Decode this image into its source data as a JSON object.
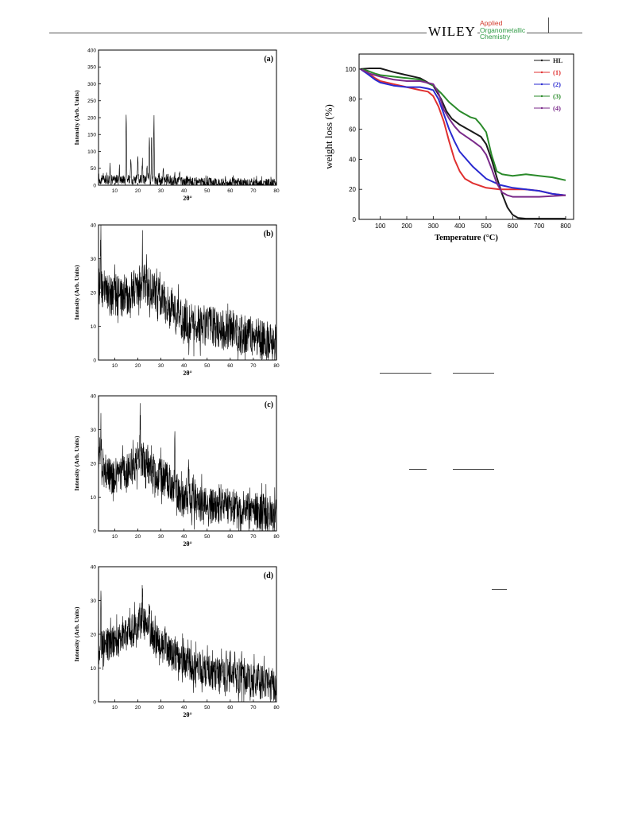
{
  "header": {
    "publisher": "WILEY",
    "journal_lines": [
      "Applied",
      "Organometallic",
      "Chemistry"
    ]
  },
  "chart_data": [
    {
      "type": "line",
      "panel_label": "(a)",
      "xlabel": "2θ°",
      "ylabel": "Intensity (Arb. Units)",
      "xlim": [
        3,
        80
      ],
      "ylim": [
        0,
        400
      ],
      "xticks": [
        10,
        20,
        30,
        40,
        50,
        60,
        70,
        80
      ],
      "yticks": [
        0,
        50,
        100,
        150,
        200,
        250,
        300,
        350,
        400
      ],
      "series": [
        {
          "color": "#000000",
          "baseline": [
            [
              3,
              16
            ],
            [
              20,
              18
            ],
            [
              30,
              14
            ],
            [
              40,
              10
            ],
            [
              50,
              8
            ],
            [
              60,
              7
            ],
            [
              80,
              5
            ]
          ],
          "noise": 14,
          "peaks": [
            [
              5,
              28
            ],
            [
              8,
              55
            ],
            [
              12,
              50
            ],
            [
              15,
              220
            ],
            [
              17,
              80
            ],
            [
              20,
              75
            ],
            [
              22,
              68
            ],
            [
              24,
              60
            ],
            [
              25,
              160
            ],
            [
              26,
              150
            ],
            [
              27,
              205
            ],
            [
              29,
              38
            ],
            [
              31,
              45
            ],
            [
              33,
              35
            ],
            [
              36,
              28
            ],
            [
              38,
              50
            ]
          ]
        }
      ]
    },
    {
      "type": "line",
      "panel_label": "(b)",
      "xlabel": "2θ°",
      "ylabel": "Intensity (Arb. Units)",
      "xlim": [
        3,
        80
      ],
      "ylim": [
        0,
        40
      ],
      "xticks": [
        10,
        20,
        30,
        40,
        50,
        60,
        70,
        80
      ],
      "yticks": [
        0,
        10,
        20,
        30,
        40
      ],
      "series": [
        {
          "color": "#000000",
          "baseline": [
            [
              3,
              22
            ],
            [
              8,
              19
            ],
            [
              15,
              19
            ],
            [
              22,
              23
            ],
            [
              28,
              20
            ],
            [
              35,
              15
            ],
            [
              40,
              11
            ],
            [
              50,
              10
            ],
            [
              60,
              9
            ],
            [
              70,
              7
            ],
            [
              80,
              5
            ]
          ],
          "noise": 6,
          "peaks": [
            [
              4,
              38
            ],
            [
              22,
              34
            ],
            [
              35,
              19
            ]
          ]
        }
      ]
    },
    {
      "type": "line",
      "panel_label": "(c)",
      "xlabel": "2θ°",
      "ylabel": "Intensity (Arb. Units)",
      "xlim": [
        3,
        80
      ],
      "ylim": [
        0,
        40
      ],
      "xticks": [
        10,
        20,
        30,
        40,
        50,
        60,
        70,
        80
      ],
      "yticks": [
        0,
        10,
        20,
        30,
        40
      ],
      "series": [
        {
          "color": "#000000",
          "baseline": [
            [
              3,
              20
            ],
            [
              8,
              16
            ],
            [
              15,
              17
            ],
            [
              21,
              22
            ],
            [
              26,
              18
            ],
            [
              33,
              15
            ],
            [
              40,
              9
            ],
            [
              50,
              8
            ],
            [
              60,
              7
            ],
            [
              70,
              6
            ],
            [
              80,
              5
            ]
          ],
          "noise": 5.5,
          "peaks": [
            [
              4,
              33
            ],
            [
              21,
              36
            ],
            [
              36,
              27
            ],
            [
              42,
              22
            ]
          ]
        }
      ]
    },
    {
      "type": "line",
      "panel_label": "(d)",
      "xlabel": "2θ°",
      "ylabel": "Intensity (Arb. Units)",
      "xlim": [
        3,
        80
      ],
      "ylim": [
        0,
        40
      ],
      "xticks": [
        10,
        20,
        30,
        40,
        50,
        60,
        70,
        80
      ],
      "yticks": [
        0,
        10,
        20,
        30,
        40
      ],
      "series": [
        {
          "color": "#000000",
          "baseline": [
            [
              3,
              16
            ],
            [
              10,
              18
            ],
            [
              16,
              20
            ],
            [
              22,
              24
            ],
            [
              28,
              18
            ],
            [
              35,
              14
            ],
            [
              45,
              10
            ],
            [
              55,
              8
            ],
            [
              65,
              7
            ],
            [
              80,
              5
            ]
          ],
          "noise": 5,
          "peaks": [
            [
              4,
              32
            ],
            [
              22,
              36
            ],
            [
              25,
              31
            ]
          ]
        }
      ]
    },
    {
      "type": "line",
      "xlabel": "Temperature (°C)",
      "ylabel": "weight loss (%)",
      "xlim": [
        20,
        830
      ],
      "ylim": [
        0,
        110
      ],
      "xticks": [
        100,
        200,
        300,
        400,
        500,
        600,
        700,
        800
      ],
      "yticks": [
        0,
        20,
        40,
        60,
        80,
        100
      ],
      "legend": "top-right",
      "series": [
        {
          "name": "HL",
          "color": "#1a1a1a",
          "x": [
            25,
            60,
            100,
            150,
            200,
            250,
            300,
            330,
            350,
            370,
            400,
            450,
            480,
            500,
            520,
            540,
            560,
            580,
            600,
            620,
            650,
            700,
            800
          ],
          "y": [
            100,
            100.5,
            100.5,
            98,
            96,
            94,
            89,
            80,
            72,
            67,
            63,
            58,
            55,
            50,
            40,
            28,
            17,
            8,
            3,
            1,
            0.5,
            0.5,
            0.5
          ]
        },
        {
          "name": "(1)",
          "color": "#e03030",
          "x": [
            25,
            50,
            80,
            100,
            150,
            200,
            250,
            280,
            300,
            320,
            340,
            360,
            380,
            400,
            420,
            450,
            500,
            550,
            600,
            650,
            700,
            750,
            800
          ],
          "y": [
            100,
            98,
            94,
            92,
            90,
            88,
            86,
            85,
            82,
            75,
            65,
            52,
            40,
            32,
            27,
            24,
            21,
            20,
            20,
            20,
            19,
            17,
            16
          ]
        },
        {
          "name": "(2)",
          "color": "#2a2ad0",
          "x": [
            25,
            50,
            80,
            100,
            150,
            200,
            250,
            280,
            300,
            320,
            340,
            360,
            380,
            400,
            450,
            500,
            550,
            600,
            650,
            700,
            750,
            800
          ],
          "y": [
            100,
            97,
            93,
            91,
            89,
            88,
            88,
            87,
            86,
            80,
            70,
            60,
            52,
            45,
            35,
            27,
            23,
            21,
            20,
            19,
            17,
            16
          ]
        },
        {
          "name": "(3)",
          "color": "#2a8a2a",
          "x": [
            25,
            50,
            80,
            100,
            150,
            200,
            250,
            300,
            330,
            360,
            400,
            440,
            460,
            480,
            500,
            520,
            540,
            560,
            600,
            650,
            700,
            750,
            800
          ],
          "y": [
            100,
            99,
            97,
            96,
            95,
            94,
            93,
            89,
            84,
            78,
            72,
            68,
            67,
            63,
            58,
            43,
            32,
            30,
            29,
            30,
            29,
            28,
            26
          ]
        },
        {
          "name": "(4)",
          "color": "#7a2a8a",
          "x": [
            25,
            60,
            100,
            150,
            200,
            250,
            300,
            320,
            340,
            360,
            380,
            400,
            450,
            480,
            500,
            520,
            540,
            560,
            580,
            600,
            700,
            800
          ],
          "y": [
            100,
            97,
            95,
            93,
            92,
            92,
            90,
            84,
            73,
            67,
            62,
            58,
            52,
            48,
            43,
            34,
            24,
            18,
            16,
            15,
            15,
            16
          ]
        }
      ]
    }
  ]
}
